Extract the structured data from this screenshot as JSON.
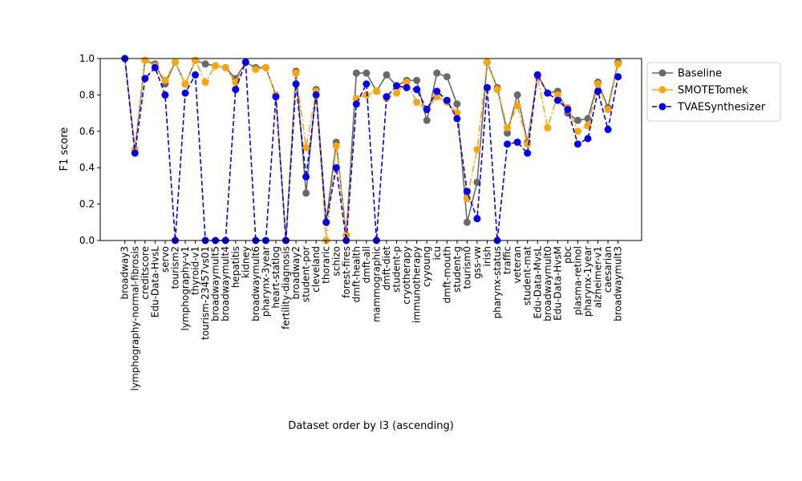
{
  "chart_data": {
    "type": "line",
    "title": "",
    "xlabel": "Dataset order by l3 (ascending)",
    "ylabel": "F1 score",
    "ylim": [
      0.0,
      1.0
    ],
    "yticks": [
      "0.0",
      "0.2",
      "0.4",
      "0.6",
      "0.8",
      "1.0"
    ],
    "grid": false,
    "legend_position": "outside top-right",
    "categories": [
      "broadway3",
      "lymphography-normal-fibrosis",
      "creditscore",
      "Edu-Data-HvsL",
      "servo",
      "tourism2",
      "lymphography-v1",
      "thyroid-v1",
      "tourism-23457vs01",
      "broadwaymult5",
      "broadwaymult4",
      "hepatitis",
      "kidney",
      "broadwaymult6",
      "pharynx-3year",
      "heart-statlog",
      "fertility-diagnosis",
      "broadway2",
      "student-por",
      "cleveland",
      "thoraric",
      "schizo",
      "forest-fires",
      "dmft-health",
      "dmft-all",
      "mammographic",
      "dmft-diet",
      "student-p",
      "cryotherapy",
      "immunotherapy",
      "cyyoung",
      "icu",
      "dmft-mouth",
      "student-g",
      "tourism0",
      "gss-vw",
      "irish",
      "pharynx-status",
      "traffic",
      "veteran",
      "student-mat",
      "Edu-Data-MvsL",
      "broadwaymult0",
      "Edu-Data-HvsM",
      "pbc",
      "plasma-retinol",
      "pharynx-1year",
      "alzheimer-v1",
      "caesarian",
      "broadwaymult3"
    ],
    "series": [
      {
        "name": "Baseline",
        "color": "#696969",
        "linestyle": "solid",
        "values": [
          1.0,
          0.5,
          0.99,
          0.97,
          0.86,
          0.98,
          0.86,
          0.99,
          0.97,
          0.96,
          0.95,
          0.89,
          0.98,
          0.95,
          0.95,
          0.8,
          0.0,
          0.93,
          0.26,
          0.83,
          0.1,
          0.54,
          0.03,
          0.92,
          0.92,
          0.82,
          0.91,
          0.85,
          0.88,
          0.88,
          0.66,
          0.92,
          0.9,
          0.75,
          0.1,
          0.32,
          0.98,
          0.84,
          0.59,
          0.8,
          0.54,
          0.91,
          0.81,
          0.82,
          0.7,
          0.66,
          0.67,
          0.87,
          0.73,
          0.98
        ]
      },
      {
        "name": "SMOTETomek",
        "color": "#ffa500",
        "linestyle": "dashdot",
        "values": [
          1.0,
          0.5,
          0.99,
          0.96,
          0.88,
          0.98,
          0.86,
          0.99,
          0.87,
          0.96,
          0.95,
          0.87,
          0.98,
          0.94,
          0.95,
          0.8,
          0.0,
          0.92,
          0.51,
          0.82,
          0.0,
          0.52,
          0.03,
          0.78,
          0.8,
          0.82,
          0.78,
          0.81,
          0.87,
          0.76,
          0.72,
          0.79,
          0.76,
          0.7,
          0.23,
          0.5,
          0.98,
          0.83,
          0.62,
          0.74,
          0.53,
          0.9,
          0.62,
          0.8,
          0.73,
          0.6,
          0.63,
          0.86,
          0.72,
          0.97
        ]
      },
      {
        "name": "TVAESynthesizer",
        "color": "#0000ff",
        "linestyle": "dashed",
        "values": [
          1.0,
          0.48,
          0.89,
          0.95,
          0.8,
          0.0,
          0.81,
          0.91,
          0.0,
          0.0,
          0.0,
          0.83,
          0.98,
          0.0,
          0.0,
          0.79,
          0.0,
          0.86,
          0.35,
          0.8,
          0.1,
          0.4,
          0.0,
          0.75,
          0.86,
          0.0,
          0.79,
          0.85,
          0.84,
          0.83,
          0.72,
          0.82,
          0.77,
          0.67,
          0.27,
          0.12,
          0.84,
          0.0,
          0.53,
          0.54,
          0.48,
          0.91,
          0.81,
          0.77,
          0.72,
          0.53,
          0.56,
          0.82,
          0.61,
          0.9
        ]
      }
    ]
  }
}
